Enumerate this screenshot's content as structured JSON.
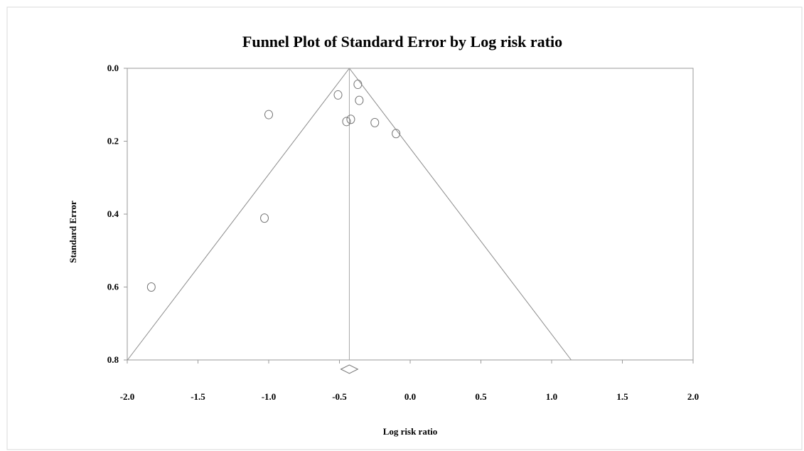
{
  "chart_data": {
    "type": "scatter",
    "title": "Funnel Plot of Standard Error by Log risk ratio",
    "xlabel": "Log risk ratio",
    "ylabel": "Standard Error",
    "xlim": [
      -2.0,
      2.0
    ],
    "ylim": [
      0.0,
      0.8
    ],
    "y_inverted": true,
    "grid": false,
    "x_ticks": [
      "-2.0",
      "-1.5",
      "-1.0",
      "-0.5",
      "0.0",
      "0.5",
      "1.0",
      "1.5",
      "2.0"
    ],
    "y_ticks": [
      "0.0",
      "0.2",
      "0.4",
      "0.6",
      "0.8"
    ],
    "x_tick_values": [
      -2.0,
      -1.5,
      -1.0,
      -0.5,
      0.0,
      0.5,
      1.0,
      1.5,
      2.0
    ],
    "y_tick_values": [
      0.0,
      0.2,
      0.4,
      0.6,
      0.8
    ],
    "pooled_estimate": -0.43,
    "points": [
      {
        "x": -0.37,
        "y": 0.044
      },
      {
        "x": -0.51,
        "y": 0.073
      },
      {
        "x": -0.36,
        "y": 0.088
      },
      {
        "x": -1.0,
        "y": 0.127
      },
      {
        "x": -0.42,
        "y": 0.14
      },
      {
        "x": -0.45,
        "y": 0.146
      },
      {
        "x": -0.25,
        "y": 0.149
      },
      {
        "x": -0.1,
        "y": 0.179
      },
      {
        "x": -1.03,
        "y": 0.411
      },
      {
        "x": -1.83,
        "y": 0.6
      }
    ],
    "summary_diamond": {
      "x": -0.43,
      "half_width": 0.06
    }
  }
}
